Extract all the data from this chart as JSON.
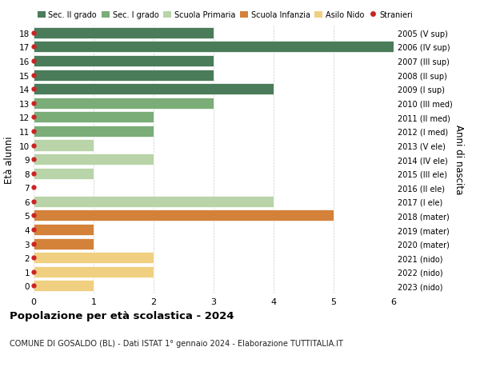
{
  "ages": [
    18,
    17,
    16,
    15,
    14,
    13,
    12,
    11,
    10,
    9,
    8,
    7,
    6,
    5,
    4,
    3,
    2,
    1,
    0
  ],
  "right_labels": [
    "2005 (V sup)",
    "2006 (IV sup)",
    "2007 (III sup)",
    "2008 (II sup)",
    "2009 (I sup)",
    "2010 (III med)",
    "2011 (II med)",
    "2012 (I med)",
    "2013 (V ele)",
    "2014 (IV ele)",
    "2015 (III ele)",
    "2016 (II ele)",
    "2017 (I ele)",
    "2018 (mater)",
    "2019 (mater)",
    "2020 (mater)",
    "2021 (nido)",
    "2022 (nido)",
    "2023 (nido)"
  ],
  "values": [
    3,
    6,
    3,
    3,
    4,
    3,
    2,
    2,
    1,
    2,
    1,
    0,
    4,
    5,
    1,
    1,
    2,
    2,
    1
  ],
  "bar_colors": [
    "#4a7c59",
    "#4a7c59",
    "#4a7c59",
    "#4a7c59",
    "#4a7c59",
    "#7aad78",
    "#7aad78",
    "#7aad78",
    "#b8d4a8",
    "#b8d4a8",
    "#b8d4a8",
    "#b8d4a8",
    "#b8d4a8",
    "#d4813a",
    "#d4813a",
    "#d4813a",
    "#f0d080",
    "#f0d080",
    "#f0d080"
  ],
  "legend_labels": [
    "Sec. II grado",
    "Sec. I grado",
    "Scuola Primaria",
    "Scuola Infanzia",
    "Asilo Nido",
    "Stranieri"
  ],
  "legend_colors": [
    "#4a7c59",
    "#7aad78",
    "#b8d4a8",
    "#d4813a",
    "#f0d080",
    "#cc2222"
  ],
  "ylabel": "Età alunni",
  "right_ylabel": "Anni di nascita",
  "title": "Popolazione per età scolastica - 2024",
  "subtitle": "COMUNE DI GOSALDO (BL) - Dati ISTAT 1° gennaio 2024 - Elaborazione TUTTITALIA.IT",
  "xlim": [
    0,
    6
  ],
  "dot_color": "#cc2222",
  "background_color": "#ffffff",
  "grid_color": "#cccccc"
}
